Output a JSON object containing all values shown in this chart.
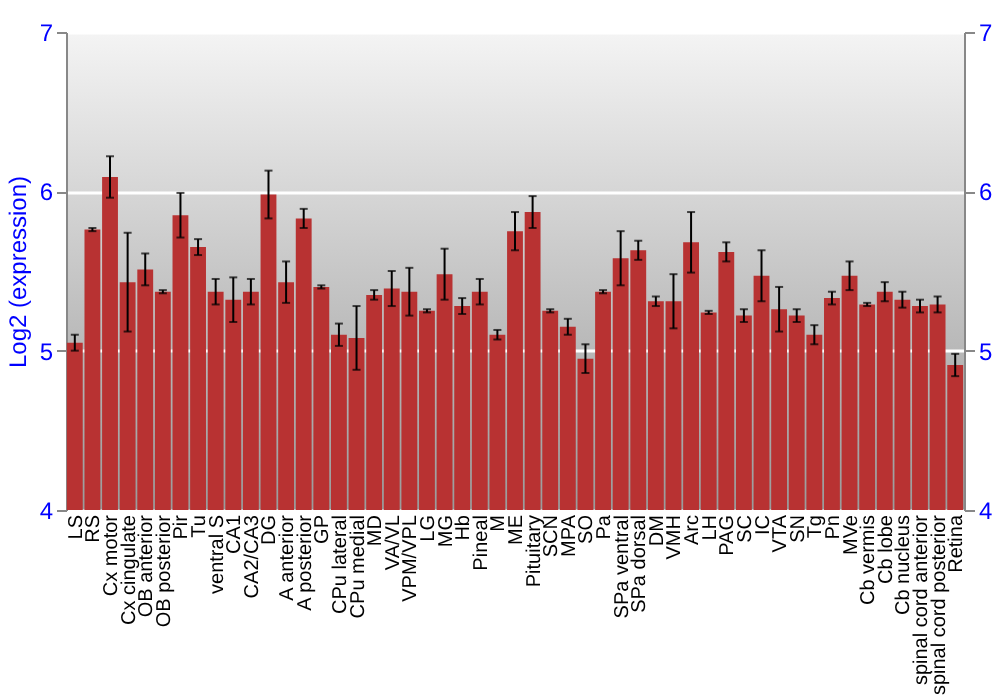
{
  "chart_data": {
    "type": "bar",
    "ylabel": "Log2 (expression)",
    "categories": [
      "LS",
      "RS",
      "Cx motor",
      "Cx cingulate",
      "OB anterior",
      "OB posterior",
      "Pir",
      "Tu",
      "ventral S",
      "CA1",
      "CA2/CA3",
      "DG",
      "A anterior",
      "A posterior",
      "GP",
      "CPu lateral",
      "CPu medial",
      "MD",
      "VA/VL",
      "VPM/VPL",
      "LG",
      "MG",
      "Hb",
      "Pineal",
      "M",
      "ME",
      "Pituitary",
      "SCN",
      "MPA",
      "SO",
      "Pa",
      "SPa ventral",
      "SPa dorsal",
      "DM",
      "VMH",
      "Arc",
      "LH",
      "PAG",
      "SC",
      "IC",
      "VTA",
      "SN",
      "Tg",
      "Pn",
      "MVe",
      "Cb vermis",
      "Cb lobe",
      "Cb nucleus",
      "spinal cord anterior",
      "spinal cord posterior",
      "Retina"
    ],
    "series": [
      {
        "color": "#b83232",
        "values": [
          5.05,
          5.76,
          6.09,
          5.43,
          5.51,
          5.37,
          5.85,
          5.65,
          5.37,
          5.32,
          5.37,
          5.98,
          5.43,
          5.83,
          5.4,
          5.1,
          5.08,
          5.35,
          5.39,
          5.37,
          5.25,
          5.48,
          5.28,
          5.37,
          5.1,
          5.75,
          5.87,
          5.25,
          5.15,
          4.95,
          5.37,
          5.58,
          5.63,
          5.31,
          5.31,
          5.68,
          5.24,
          5.62,
          5.22,
          5.47,
          5.26,
          5.22,
          5.1,
          5.33,
          5.47,
          5.29,
          5.37,
          5.32,
          5.28,
          5.29,
          4.91
        ],
        "errors": [
          0.05,
          0.01,
          0.13,
          0.31,
          0.1,
          0.01,
          0.14,
          0.05,
          0.08,
          0.14,
          0.08,
          0.15,
          0.13,
          0.06,
          0.01,
          0.07,
          0.2,
          0.03,
          0.11,
          0.15,
          0.01,
          0.16,
          0.05,
          0.08,
          0.03,
          0.12,
          0.1,
          0.01,
          0.05,
          0.09,
          0.01,
          0.17,
          0.06,
          0.03,
          0.17,
          0.19,
          0.01,
          0.06,
          0.04,
          0.16,
          0.14,
          0.04,
          0.06,
          0.04,
          0.09,
          0.01,
          0.06,
          0.05,
          0.04,
          0.05,
          0.07
        ]
      }
    ],
    "ylim": [
      4,
      7
    ],
    "yticks": [
      4,
      5,
      6,
      7
    ],
    "y2lim": [
      4,
      7
    ],
    "y2ticks": [
      4,
      5,
      6,
      7
    ],
    "grid": "y"
  }
}
